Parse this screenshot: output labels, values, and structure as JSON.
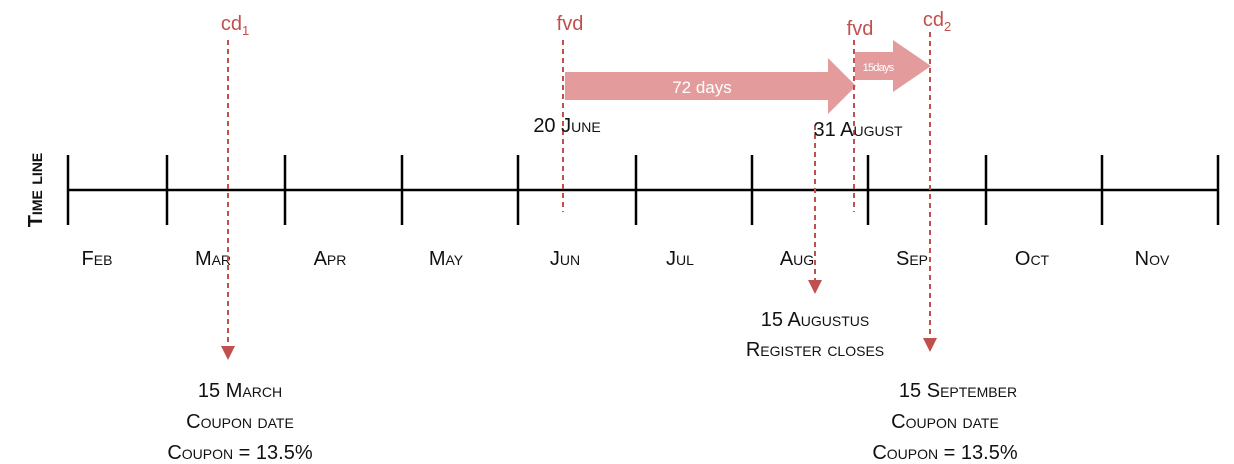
{
  "axis_label": "Time line",
  "months": [
    "Feb",
    "Mar",
    "Apr",
    "May",
    "Jun",
    "Jul",
    "Aug",
    "Sep",
    "Oct",
    "Nov"
  ],
  "markers": [
    {
      "text": "cd",
      "sub": "1"
    },
    {
      "text": "fvd"
    },
    {
      "text": "fvd"
    },
    {
      "text": "cd",
      "sub": "2"
    }
  ],
  "arrows": [
    "72 days",
    "15days"
  ],
  "dates": [
    "20 June",
    "31 August"
  ],
  "register": [
    "15 Augustus",
    "Register closes"
  ],
  "coupon1": [
    "15 March",
    "Coupon date",
    "Coupon = 13.5%"
  ],
  "coupon2": [
    "15 September",
    "Coupon date",
    "Coupon = 13.5%"
  ]
}
